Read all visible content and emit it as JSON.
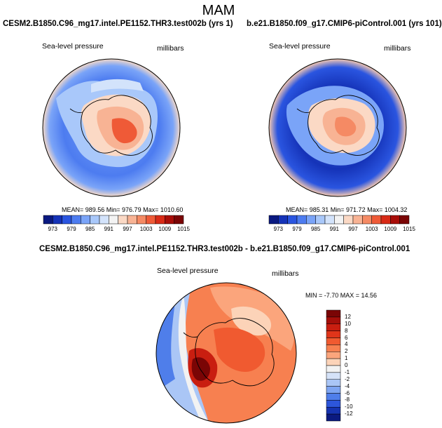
{
  "figure": {
    "season": "MAM"
  },
  "panels": [
    {
      "title": "CESM2.B1850.C96_mg17.intel.PE1152.THR3.test002b (yrs 1)",
      "variable": "Sea-level pressure",
      "units": "millibars",
      "stats": "MEAN= 989.56   Min= 976.79   Max= 1010.60",
      "colorbar_labels": [
        "973",
        "979",
        "985",
        "991",
        "997",
        "1003",
        "1009",
        "1015"
      ],
      "colorbar_colors": [
        "#0a1980",
        "#1533b8",
        "#2a55e0",
        "#4d7cf0",
        "#7aa4f8",
        "#a9c8fa",
        "#d3e3fb",
        "#f3f3f3",
        "#fbd9c5",
        "#f8b394",
        "#f58a64",
        "#ef5a37",
        "#d82a16",
        "#a80d08",
        "#7a0505"
      ]
    },
    {
      "title": "b.e21.B1850.f09_g17.CMIP6-piControl.001 (yrs 101)",
      "variable": "Sea-level pressure",
      "units": "millibars",
      "stats": "MEAN= 985.31   Min= 971.72   Max= 1004.32",
      "colorbar_labels": [
        "973",
        "979",
        "985",
        "991",
        "997",
        "1003",
        "1009",
        "1015"
      ],
      "colorbar_colors": [
        "#0a1980",
        "#1533b8",
        "#2a55e0",
        "#4d7cf0",
        "#7aa4f8",
        "#a9c8fa",
        "#d3e3fb",
        "#f3f3f3",
        "#fbd9c5",
        "#f8b394",
        "#f58a64",
        "#ef5a37",
        "#d82a16",
        "#a80d08",
        "#7a0505"
      ]
    },
    {
      "title": "CESM2.B1850.C96_mg17.intel.PE1152.THR3.test002b - b.e21.B1850.f09_g17.CMIP6-piControl.001",
      "variable": "Sea-level pressure",
      "units": "millibars",
      "stats": "MIN = -7.70 MAX =  14.56",
      "colorbar_labels": [
        "12",
        "10",
        "8",
        "6",
        "4",
        "2",
        "1",
        "0",
        "-1",
        "-2",
        "-4",
        "-6",
        "-8",
        "-10",
        "-12"
      ],
      "colorbar_colors": [
        "#7a0505",
        "#a50f0a",
        "#c91e10",
        "#e0351a",
        "#f05a30",
        "#f78050",
        "#fba57c",
        "#fcd3b8",
        "#f2f2f2",
        "#d5e2f8",
        "#aac6f6",
        "#7ea5f2",
        "#4f7eea",
        "#2d56da",
        "#1633b0",
        "#0b1a80"
      ]
    }
  ]
}
